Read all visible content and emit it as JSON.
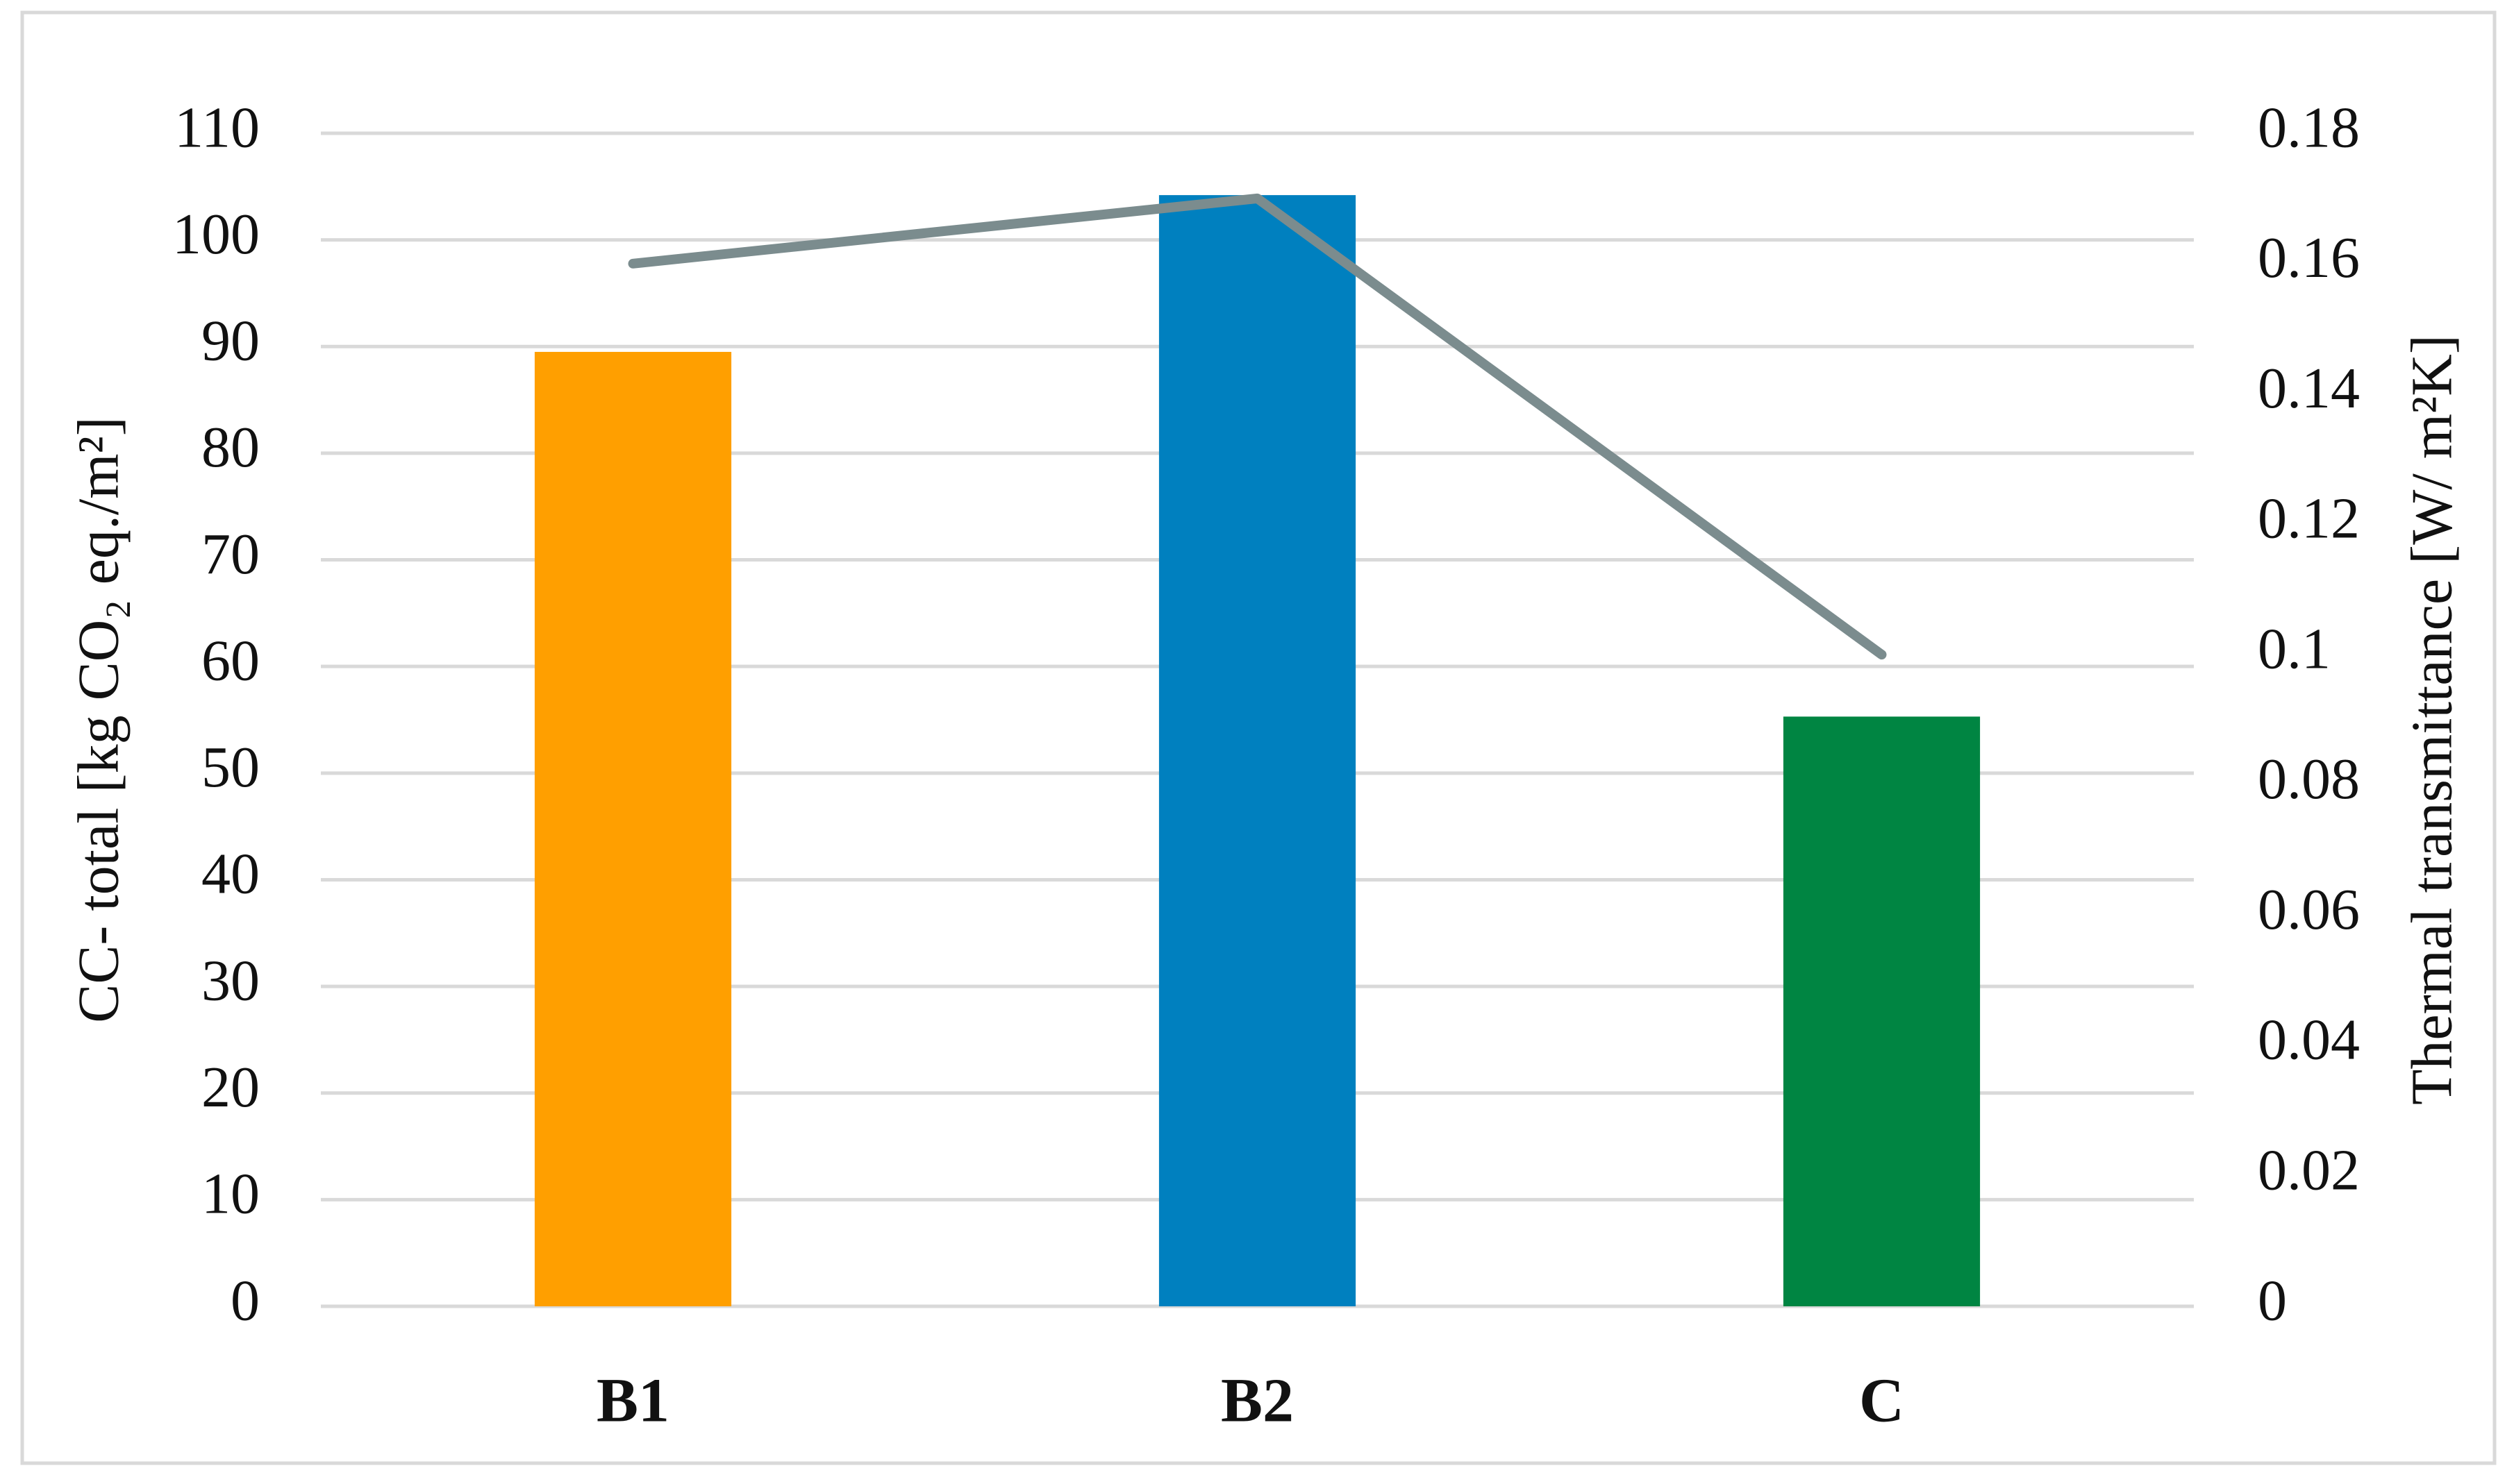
{
  "chart_data": {
    "type": "bar",
    "categories": [
      "B1",
      "B2",
      "C"
    ],
    "series": [
      {
        "type": "bar",
        "colors": [
          "#ff9f00",
          "#0080bf",
          "#008542"
        ],
        "values": [
          89.5,
          104.2,
          55.3
        ]
      },
      {
        "type": "line",
        "axis": "y2",
        "color": "#7b8c8e",
        "values": [
          0.16,
          0.17,
          0.1
        ]
      }
    ],
    "ylabel": "CC- total [kg CO₂ eq./m²]",
    "y2label": "Thermal transmittance [W/ m²K]",
    "ylim": [
      0,
      110
    ],
    "yticks": [
      0,
      10,
      20,
      30,
      40,
      50,
      60,
      70,
      80,
      90,
      100,
      110
    ],
    "y2lim": [
      0,
      0.18
    ],
    "y2ticks": [
      0,
      0.02,
      0.04,
      0.06,
      0.08,
      0.1,
      0.12,
      0.14,
      0.16,
      0.18
    ],
    "grid": true
  }
}
